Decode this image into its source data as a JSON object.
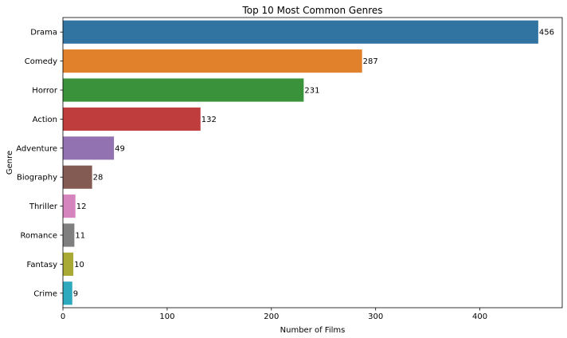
{
  "chart_data": {
    "type": "bar",
    "orientation": "horizontal",
    "title": "Top 10 Most Common Genres",
    "xlabel": "Number of Films",
    "ylabel": "Genre",
    "categories": [
      "Drama",
      "Comedy",
      "Horror",
      "Action",
      "Adventure",
      "Biography",
      "Thriller",
      "Romance",
      "Fantasy",
      "Crime"
    ],
    "values": [
      456,
      287,
      231,
      132,
      49,
      28,
      12,
      11,
      10,
      9
    ],
    "data_labels": [
      "456",
      "287",
      "231",
      "132",
      "49",
      "28",
      "12",
      "11",
      "10",
      "9"
    ],
    "colors": [
      "#3274a1",
      "#e1812c",
      "#3a923a",
      "#c03d3e",
      "#9372b2",
      "#845b53",
      "#d684bd",
      "#7f7f7f",
      "#a9aa35",
      "#2eaabf"
    ],
    "xlim": [
      0,
      479
    ],
    "xticks": [
      0,
      100,
      200,
      300,
      400
    ],
    "xtick_labels": [
      "0",
      "100",
      "200",
      "300",
      "400"
    ],
    "grid": false,
    "legend": "none"
  }
}
